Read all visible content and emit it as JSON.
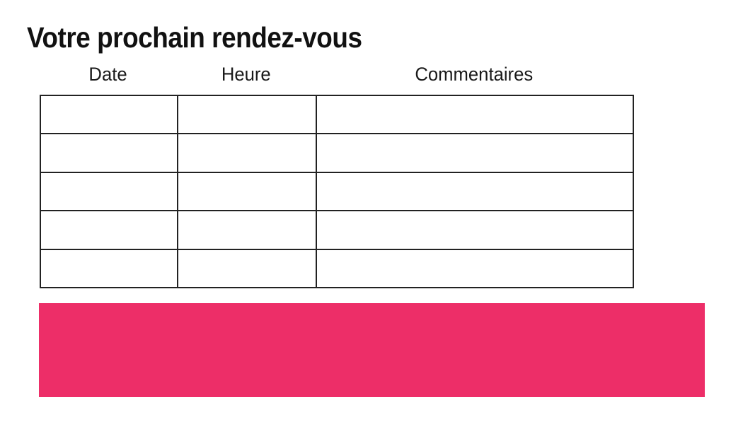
{
  "title": "Votre prochain rendez-vous",
  "table": {
    "headers": [
      "Date",
      "Heure",
      "Commentaires"
    ],
    "row_count": 5,
    "column_count": 3,
    "cells_empty": true
  },
  "banner": {
    "label": "",
    "color": "#ED2E68"
  },
  "colors": {
    "background": "#FFFFFF",
    "text": "#111111",
    "table_border": "#222222",
    "banner_pink": "#ED2E68"
  }
}
